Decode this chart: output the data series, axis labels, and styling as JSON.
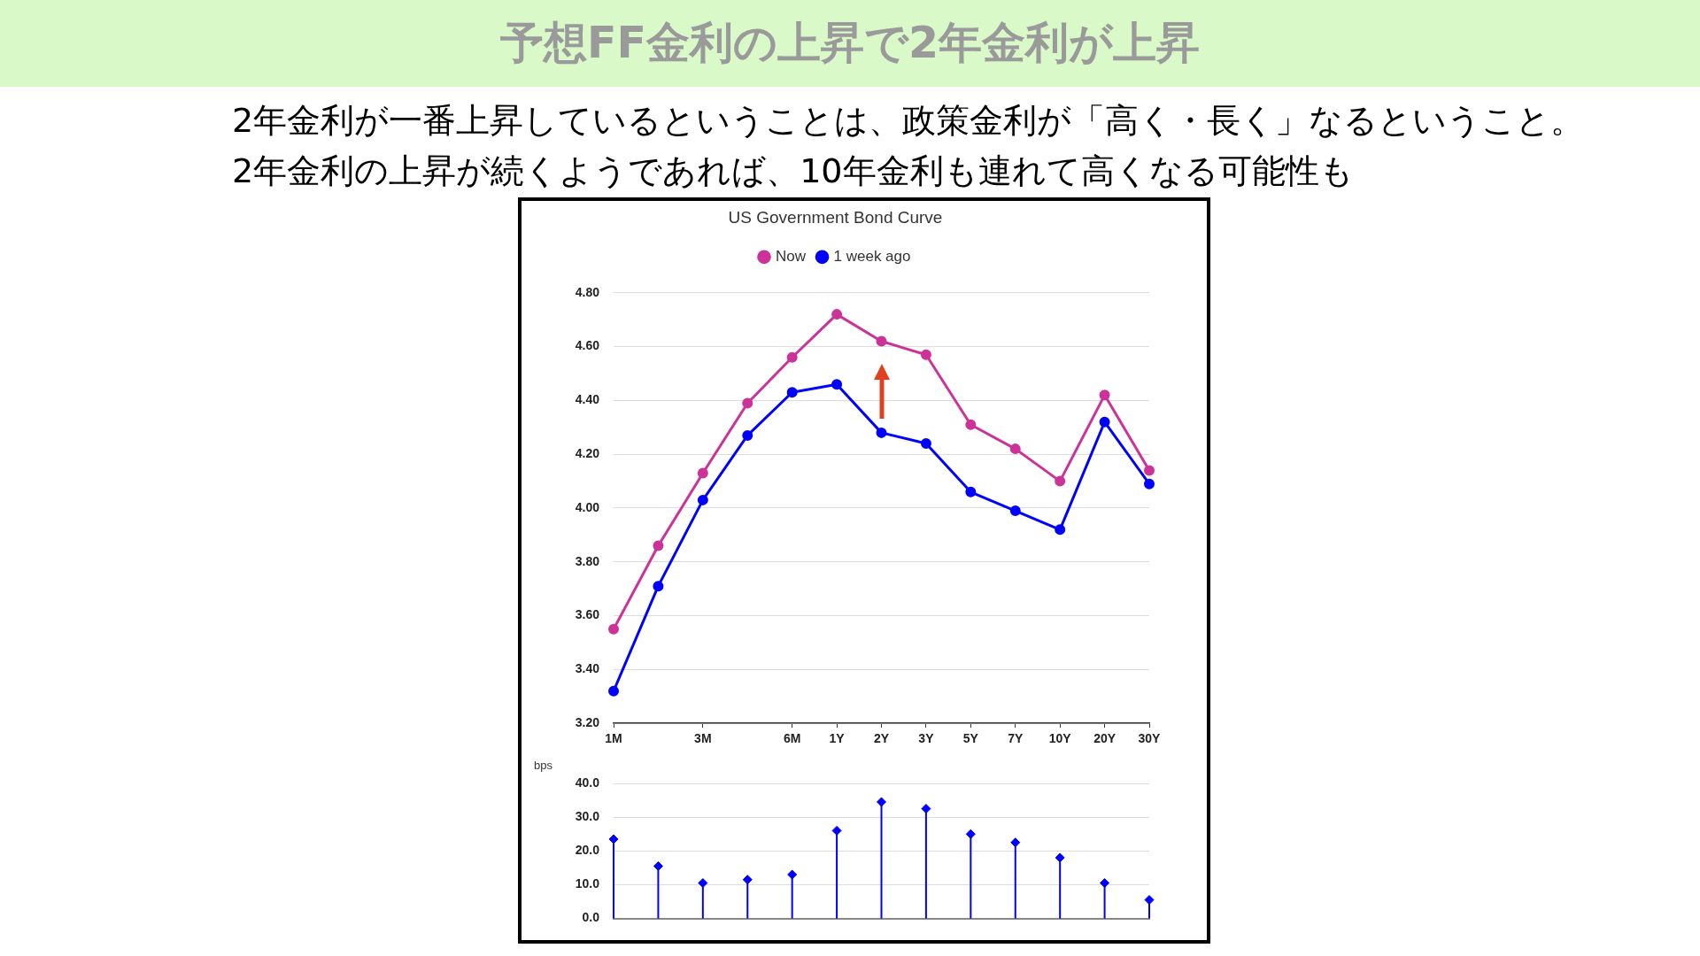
{
  "chart_data": [
    {
      "type": "other",
      "title": "予想FF金利の上昇で2年金利が上昇",
      "subtitle": "2年金利が一番上昇しているということは、政策金利が「高く・長く」なるということ。\n2年金利の上昇が続くようであれば、10年金利も連れて高くなる可能性も"
    },
    {
      "type": "line",
      "title": "US Government Bond Curve",
      "categories": [
        "1M",
        null,
        "3M",
        null,
        "6M",
        "1Y",
        "2Y",
        "3Y",
        "5Y",
        "7Y",
        "10Y",
        "20Y",
        "30Y"
      ],
      "series": [
        {
          "name": "Now",
          "color": "#cc3399",
          "values": [
            3.55,
            3.86,
            4.13,
            4.39,
            4.56,
            4.72,
            4.62,
            4.57,
            4.31,
            4.22,
            4.1,
            4.42,
            4.14
          ]
        },
        {
          "name": "1 week ago",
          "color": "#0000ff",
          "values": [
            3.32,
            3.71,
            4.03,
            4.27,
            4.43,
            4.46,
            4.28,
            4.24,
            4.06,
            3.99,
            3.92,
            4.32,
            4.09
          ]
        }
      ],
      "ylim": [
        3.2,
        4.8
      ],
      "yticks": [
        {
          "value": 3.2,
          "label": "3.20"
        },
        {
          "value": 3.4,
          "label": "3.40"
        },
        {
          "value": 3.6,
          "label": "3.60"
        },
        {
          "value": 3.8,
          "label": "3.80"
        },
        {
          "value": 4.0,
          "label": "4.00"
        },
        {
          "value": 4.2,
          "label": "4.20"
        },
        {
          "value": 4.4,
          "label": "4.40"
        },
        {
          "value": 4.6,
          "label": "4.60"
        },
        {
          "value": 4.8,
          "label": "4.80"
        }
      ],
      "grid": "y",
      "legend": "top",
      "marker": "circle",
      "line_style": "solid"
    },
    {
      "type": "lollipop",
      "ylabel": "bps",
      "categories": [
        null,
        null,
        null,
        null,
        null,
        null,
        null,
        null,
        null,
        null,
        null,
        null,
        null
      ],
      "values": [
        23.5,
        15.5,
        10.5,
        11.5,
        13,
        26,
        34.5,
        32.5,
        25,
        22.5,
        18,
        10.5,
        5.5
      ],
      "color": "#0000ff",
      "ylim": [
        0,
        40
      ],
      "yticks": [
        {
          "value": 0,
          "label": "0.0"
        },
        {
          "value": 10,
          "label": "10.0"
        },
        {
          "value": 20,
          "label": "20.0"
        },
        {
          "value": 30,
          "label": "30.0"
        },
        {
          "value": 40,
          "label": "40.0"
        }
      ],
      "grid": "y",
      "marker": "diamond"
    }
  ]
}
